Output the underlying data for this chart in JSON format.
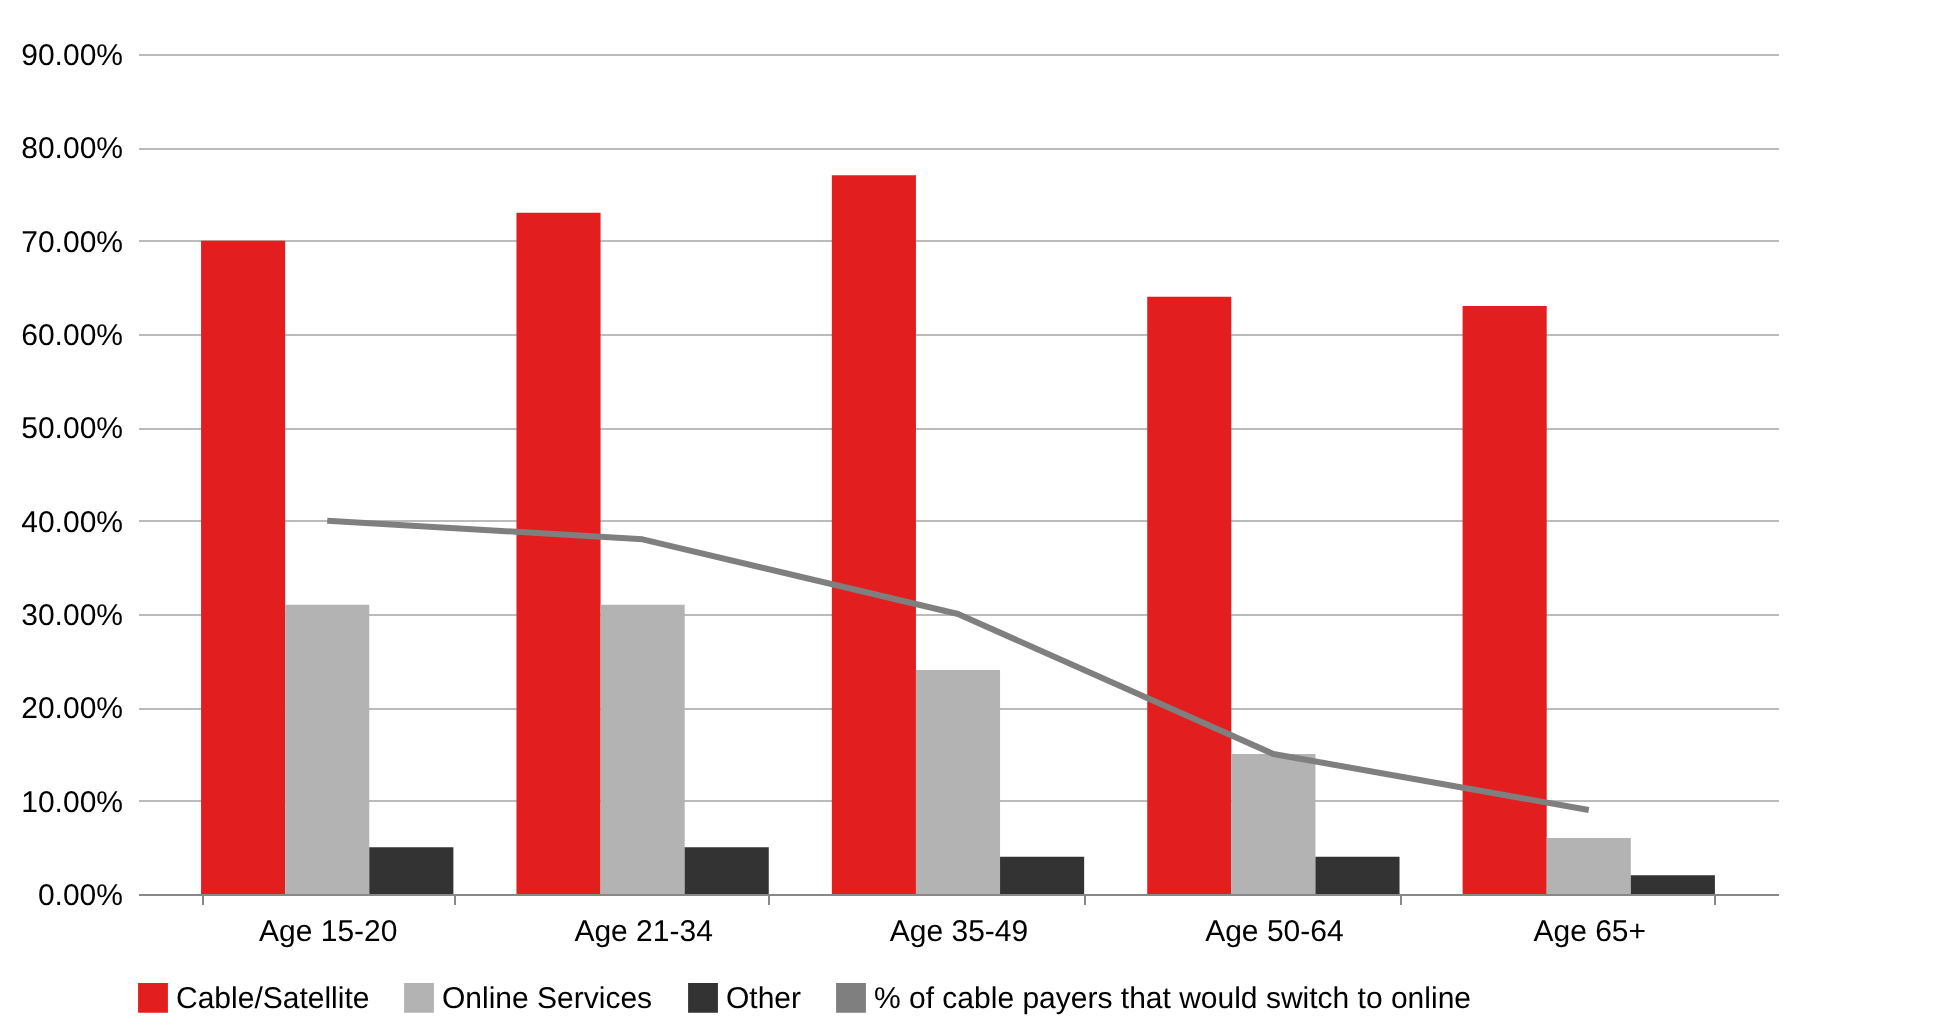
{
  "chart_data": {
    "type": "bar",
    "categories": [
      "Age 15-20",
      "Age 21-34",
      "Age 35-49",
      "Age 50-64",
      "Age 65+"
    ],
    "series": [
      {
        "name": "Cable/Satellite",
        "color": "#e31e1e",
        "values": [
          70,
          73,
          77,
          64,
          63
        ]
      },
      {
        "name": "Online Services",
        "color": "#b3b3b3",
        "values": [
          31,
          31,
          24,
          15,
          6
        ]
      },
      {
        "name": "Other",
        "color": "#333333",
        "values": [
          5,
          5,
          4,
          4,
          2
        ]
      },
      {
        "name": "% of cable payers that would switch to online",
        "type": "line",
        "color": "#7f7f7f",
        "values": [
          40,
          38,
          30,
          15,
          9
        ]
      }
    ],
    "ylim": [
      0,
      90
    ],
    "yticks": [
      {
        "value": 0,
        "label": "0.00%"
      },
      {
        "value": 10,
        "label": "10.00%"
      },
      {
        "value": 20,
        "label": "20.00%"
      },
      {
        "value": 30,
        "label": "30.00%"
      },
      {
        "value": 40,
        "label": "40.00%"
      },
      {
        "value": 50,
        "label": "50.00%"
      },
      {
        "value": 60,
        "label": "60.00%"
      },
      {
        "value": 70,
        "label": "70.00%"
      },
      {
        "value": 80,
        "label": "80.00%"
      },
      {
        "value": 90,
        "label": "90.00%"
      }
    ],
    "grid": "y",
    "legend": "bottom"
  }
}
